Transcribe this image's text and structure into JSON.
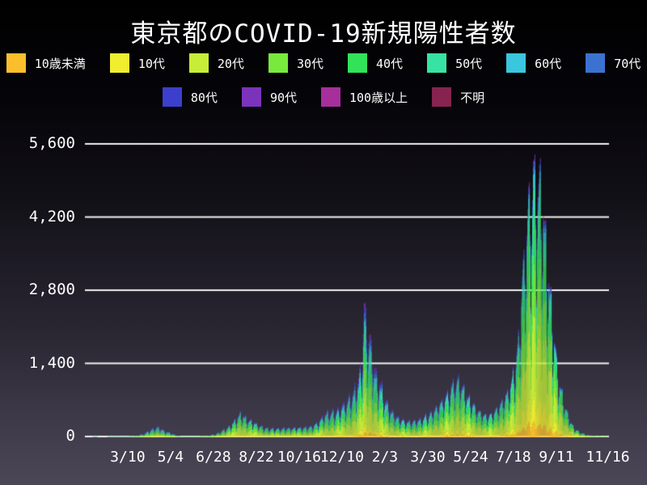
{
  "title": "東京都のCOVID-19新規陽性者数",
  "legend": {
    "rows": [
      [
        {
          "label": "10歳未満",
          "color": "#fcbf2c"
        },
        {
          "label": "10代",
          "color": "#f1ee2f"
        },
        {
          "label": "20代",
          "color": "#c6ee39"
        },
        {
          "label": "30代",
          "color": "#79ea3d"
        },
        {
          "label": "40代",
          "color": "#32e359"
        },
        {
          "label": "50代",
          "color": "#37e3a2"
        },
        {
          "label": "60代",
          "color": "#3ac6de"
        },
        {
          "label": "70代",
          "color": "#3b72d1"
        }
      ],
      [
        {
          "label": "80代",
          "color": "#3c3fcd"
        },
        {
          "label": "90代",
          "color": "#7c33bb"
        },
        {
          "label": "100歳以上",
          "color": "#a72f9c"
        },
        {
          "label": "不明",
          "color": "#86234e"
        }
      ]
    ]
  },
  "chart_data": {
    "type": "bar",
    "stacked": true,
    "title": "東京都のCOVID-19新規陽性者数",
    "xlabel": "",
    "ylabel": "",
    "ylim": [
      0,
      5900
    ],
    "grid": "horizontal-white",
    "legend_position": "top",
    "series_order": [
      "10歳未満",
      "10代",
      "20代",
      "30代",
      "40代",
      "50代",
      "60代",
      "70代",
      "80代",
      "90代",
      "100歳以上",
      "不明"
    ],
    "y_ticks": [
      {
        "label": "0",
        "value": 0
      },
      {
        "label": "1,400",
        "value": 1400
      },
      {
        "label": "2,800",
        "value": 2800
      },
      {
        "label": "4,200",
        "value": 4200
      },
      {
        "label": "5,600",
        "value": 5600
      }
    ],
    "x_ticks": [
      {
        "label": "3/10",
        "day": 45
      },
      {
        "label": "5/4",
        "day": 100
      },
      {
        "label": "6/28",
        "day": 155
      },
      {
        "label": "8/22",
        "day": 210
      },
      {
        "label": "10/16",
        "day": 265
      },
      {
        "label": "12/10",
        "day": 320
      },
      {
        "label": "2/3",
        "day": 375
      },
      {
        "label": "3/30",
        "day": 430
      },
      {
        "label": "5/24",
        "day": 485
      },
      {
        "label": "7/18",
        "day": 540
      },
      {
        "label": "9/11",
        "day": 595
      },
      {
        "label": "11/16",
        "day": 661
      }
    ],
    "days_total": 661,
    "envelope_daily_total": [
      [
        0,
        1
      ],
      [
        4,
        1
      ],
      [
        6,
        0
      ],
      [
        18,
        0
      ],
      [
        21,
        2
      ],
      [
        27,
        3
      ],
      [
        36,
        6
      ],
      [
        45,
        15
      ],
      [
        52,
        26
      ],
      [
        58,
        40
      ],
      [
        63,
        60
      ],
      [
        68,
        90
      ],
      [
        72,
        130
      ],
      [
        78,
        170
      ],
      [
        83,
        200
      ],
      [
        87,
        170
      ],
      [
        91,
        125
      ],
      [
        95,
        105
      ],
      [
        100,
        88
      ],
      [
        104,
        55
      ],
      [
        108,
        30
      ],
      [
        113,
        16
      ],
      [
        118,
        11
      ],
      [
        123,
        9
      ],
      [
        128,
        13
      ],
      [
        133,
        17
      ],
      [
        138,
        22
      ],
      [
        143,
        28
      ],
      [
        148,
        35
      ],
      [
        153,
        48
      ],
      [
        158,
        62
      ],
      [
        163,
        100
      ],
      [
        168,
        140
      ],
      [
        172,
        165
      ],
      [
        177,
        235
      ],
      [
        182,
        300
      ],
      [
        186,
        380
      ],
      [
        189,
        430
      ],
      [
        193,
        390
      ],
      [
        197,
        345
      ],
      [
        201,
        310
      ],
      [
        206,
        280
      ],
      [
        210,
        250
      ],
      [
        215,
        205
      ],
      [
        220,
        175
      ],
      [
        228,
        160
      ],
      [
        235,
        158
      ],
      [
        242,
        165
      ],
      [
        250,
        170
      ],
      [
        258,
        172
      ],
      [
        265,
        178
      ],
      [
        272,
        185
      ],
      [
        280,
        205
      ],
      [
        285,
        240
      ],
      [
        290,
        290
      ],
      [
        295,
        380
      ],
      [
        298,
        430
      ],
      [
        303,
        445
      ],
      [
        310,
        455
      ],
      [
        315,
        500
      ],
      [
        320,
        560
      ],
      [
        325,
        620
      ],
      [
        330,
        700
      ],
      [
        335,
        800
      ],
      [
        340,
        1000
      ],
      [
        344,
        1250
      ],
      [
        346,
        1700
      ],
      [
        348,
        2350
      ],
      [
        350,
        2100
      ],
      [
        352,
        1900
      ],
      [
        356,
        1700
      ],
      [
        360,
        1400
      ],
      [
        363,
        1150
      ],
      [
        367,
        1000
      ],
      [
        371,
        870
      ],
      [
        375,
        680
      ],
      [
        380,
        540
      ],
      [
        384,
        460
      ],
      [
        388,
        400
      ],
      [
        394,
        340
      ],
      [
        400,
        295
      ],
      [
        407,
        285
      ],
      [
        415,
        300
      ],
      [
        422,
        340
      ],
      [
        430,
        400
      ],
      [
        437,
        480
      ],
      [
        445,
        600
      ],
      [
        452,
        720
      ],
      [
        458,
        850
      ],
      [
        463,
        960
      ],
      [
        467,
        1000
      ],
      [
        470,
        990
      ],
      [
        474,
        880
      ],
      [
        478,
        820
      ],
      [
        482,
        700
      ],
      [
        486,
        630
      ],
      [
        491,
        520
      ],
      [
        496,
        450
      ],
      [
        501,
        420
      ],
      [
        506,
        395
      ],
      [
        511,
        400
      ],
      [
        516,
        490
      ],
      [
        521,
        560
      ],
      [
        526,
        650
      ],
      [
        531,
        780
      ],
      [
        535,
        900
      ],
      [
        539,
        1150
      ],
      [
        543,
        1350
      ],
      [
        546,
        1750
      ],
      [
        549,
        2250
      ],
      [
        552,
        3000
      ],
      [
        555,
        3500
      ],
      [
        558,
        3900
      ],
      [
        561,
        4300
      ],
      [
        564,
        4650
      ],
      [
        566,
        4700
      ],
      [
        569,
        4690
      ],
      [
        572,
        4600
      ],
      [
        575,
        4400
      ],
      [
        578,
        4100
      ],
      [
        581,
        3500
      ],
      [
        585,
        2800
      ],
      [
        588,
        2300
      ],
      [
        591,
        1900
      ],
      [
        595,
        1300
      ],
      [
        599,
        950
      ],
      [
        603,
        700
      ],
      [
        607,
        500
      ],
      [
        611,
        350
      ],
      [
        615,
        220
      ],
      [
        620,
        140
      ],
      [
        625,
        90
      ],
      [
        630,
        60
      ],
      [
        635,
        40
      ],
      [
        640,
        30
      ],
      [
        645,
        25
      ],
      [
        651,
        21
      ],
      [
        656,
        19
      ],
      [
        661,
        17
      ]
    ],
    "weekday_factors": [
      0.93,
      0.6,
      0.8,
      1.03,
      1.1,
      1.16,
      1.22
    ],
    "start_weekday": 6,
    "composition_keyframes": [
      {
        "day": 0,
        "shares": [
          0.02,
          0.02,
          0.16,
          0.16,
          0.15,
          0.14,
          0.11,
          0.1,
          0.07,
          0.03,
          0.004,
          0.036
        ]
      },
      {
        "day": 190,
        "shares": [
          0.03,
          0.05,
          0.32,
          0.22,
          0.14,
          0.09,
          0.05,
          0.04,
          0.03,
          0.015,
          0.002,
          0.013
        ]
      },
      {
        "day": 348,
        "shares": [
          0.035,
          0.06,
          0.24,
          0.18,
          0.15,
          0.12,
          0.08,
          0.06,
          0.045,
          0.02,
          0.003,
          0.007
        ]
      },
      {
        "day": 469,
        "shares": [
          0.045,
          0.08,
          0.26,
          0.19,
          0.16,
          0.12,
          0.07,
          0.04,
          0.02,
          0.01,
          0.001,
          0.004
        ]
      },
      {
        "day": 661,
        "shares": [
          0.055,
          0.1,
          0.3,
          0.21,
          0.17,
          0.1,
          0.035,
          0.015,
          0.008,
          0.003,
          0.001,
          0.003
        ]
      }
    ],
    "gridline_color": "#f2f2f2",
    "axis_line_color": "#ffffff"
  }
}
